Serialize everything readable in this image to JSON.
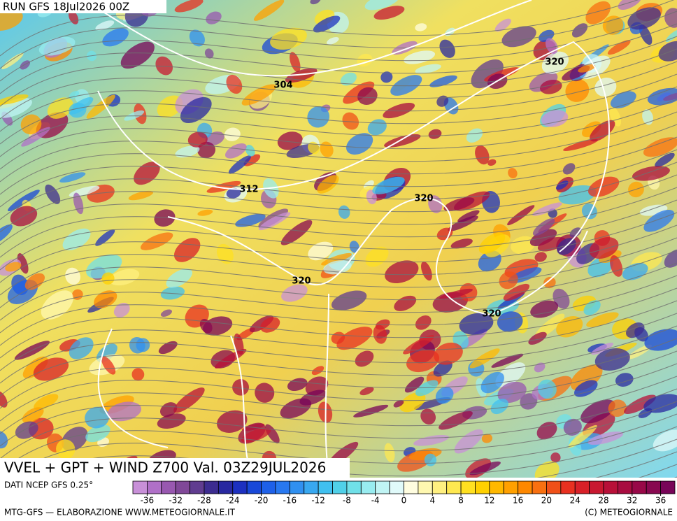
{
  "header": {
    "run": "RUN GFS 18Jul2026 00Z"
  },
  "map": {
    "contour_labels": [
      "304",
      "312",
      "320",
      "320",
      "320",
      "320"
    ]
  },
  "title": "VVEL + GPT + WIND Z700 Val. 03Z29JUL2026",
  "source": "DATI NCEP GFS 0.25°",
  "colorbar": {
    "lim": [
      -38,
      38
    ],
    "ticks": [
      -36,
      -32,
      -28,
      -24,
      -20,
      -16,
      -12,
      -8,
      -4,
      0,
      4,
      8,
      12,
      16,
      20,
      24,
      28,
      32,
      36
    ],
    "colors": [
      "#c890d8",
      "#b070c8",
      "#9858b0",
      "#804898",
      "#603c90",
      "#3c2c90",
      "#2828a0",
      "#1c30c0",
      "#1848d8",
      "#1e60e8",
      "#2878f0",
      "#3090f0",
      "#38a8f0",
      "#40c0f0",
      "#50d0e8",
      "#70e0e8",
      "#98ecf0",
      "#c0f4f4",
      "#e0fafa",
      "#fffde0",
      "#fff8b0",
      "#fff080",
      "#ffe850",
      "#ffe020",
      "#ffd000",
      "#ffb800",
      "#ffa000",
      "#ff8800",
      "#f87010",
      "#f05018",
      "#e83020",
      "#d82028",
      "#c81830",
      "#b81038",
      "#a80c40",
      "#980848",
      "#880850",
      "#780458"
    ]
  },
  "footer": {
    "left": "MTG-GFS — ELABORAZIONE WWW.METEOGIORNALE.IT",
    "right": "(C) METEOGIORNALE"
  }
}
